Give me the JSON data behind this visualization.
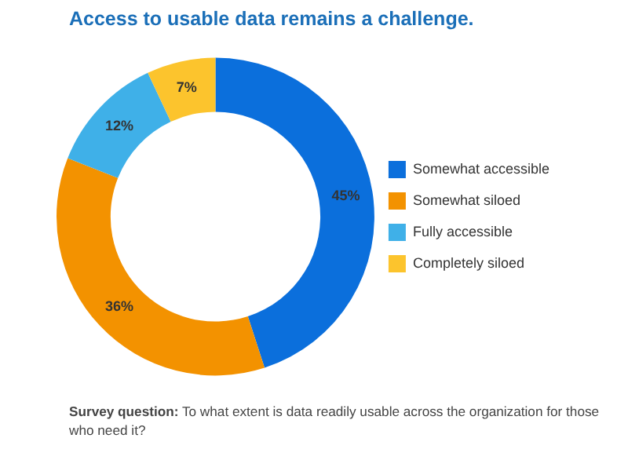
{
  "chart_data": {
    "type": "donut",
    "title": "Access to usable data remains a challenge.",
    "categories": [
      "Somewhat accessible",
      "Somewhat siloed",
      "Fully accessible",
      "Completely siloed"
    ],
    "values": [
      45,
      36,
      12,
      7
    ],
    "colors": [
      "#0b6fdc",
      "#f39200",
      "#3fb0e8",
      "#fcc42d"
    ],
    "value_labels": [
      "45%",
      "36%",
      "12%",
      "7%"
    ],
    "legend": "right",
    "annotations": [
      "Survey question: To what extent is data readily usable across the organization for those who need it?"
    ]
  }
}
